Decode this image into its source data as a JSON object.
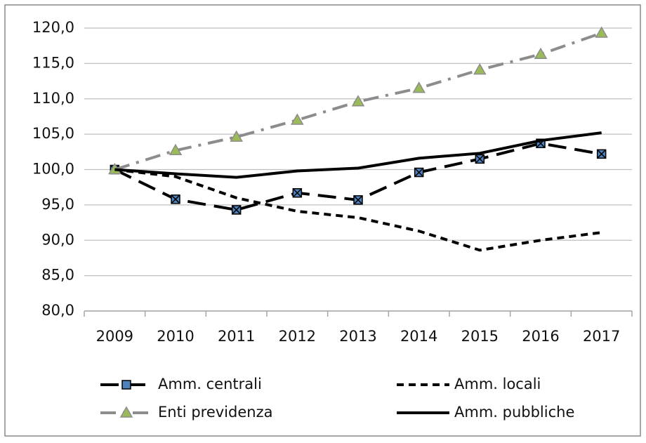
{
  "chart_data": {
    "type": "line",
    "categories": [
      "2009",
      "2010",
      "2011",
      "2012",
      "2013",
      "2014",
      "2015",
      "2016",
      "2017"
    ],
    "series": [
      {
        "name": "Amm. centrali",
        "color": "#000000",
        "line_style": "long-dash",
        "marker": "square",
        "marker_color": "#4f81bd",
        "values": [
          100,
          95.8,
          94.3,
          96.7,
          95.7,
          99.6,
          101.5,
          103.7,
          102.2
        ]
      },
      {
        "name": "Amm. locali",
        "color": "#000000",
        "line_style": "short-dash",
        "marker": "none",
        "values": [
          100,
          99.0,
          96.0,
          94.1,
          93.2,
          91.3,
          88.6,
          90.0,
          91.1
        ]
      },
      {
        "name": "Enti previdenza",
        "color": "#8c8c8c",
        "line_style": "dash-dot",
        "marker": "triangle",
        "marker_color": "#9bbb59",
        "values": [
          100,
          102.7,
          104.6,
          107.0,
          109.6,
          111.5,
          114.1,
          116.3,
          119.3
        ]
      },
      {
        "name": "Amm. pubbliche",
        "color": "#000000",
        "line_style": "solid",
        "marker": "none",
        "values": [
          100,
          99.4,
          98.9,
          99.8,
          100.2,
          101.6,
          102.3,
          104.1,
          105.2
        ]
      }
    ],
    "ylim": [
      80,
      120
    ],
    "yticks": [
      {
        "value": 80,
        "label": "80,0"
      },
      {
        "value": 85,
        "label": "85,0"
      },
      {
        "value": 90,
        "label": "90,0"
      },
      {
        "value": 95,
        "label": "95,0"
      },
      {
        "value": 100,
        "label": "100,0"
      },
      {
        "value": 105,
        "label": "105,0"
      },
      {
        "value": 110,
        "label": "110,0"
      },
      {
        "value": 115,
        "label": "115,0"
      },
      {
        "value": 120,
        "label": "120,0"
      }
    ],
    "grid": true,
    "legend": "bottom"
  }
}
